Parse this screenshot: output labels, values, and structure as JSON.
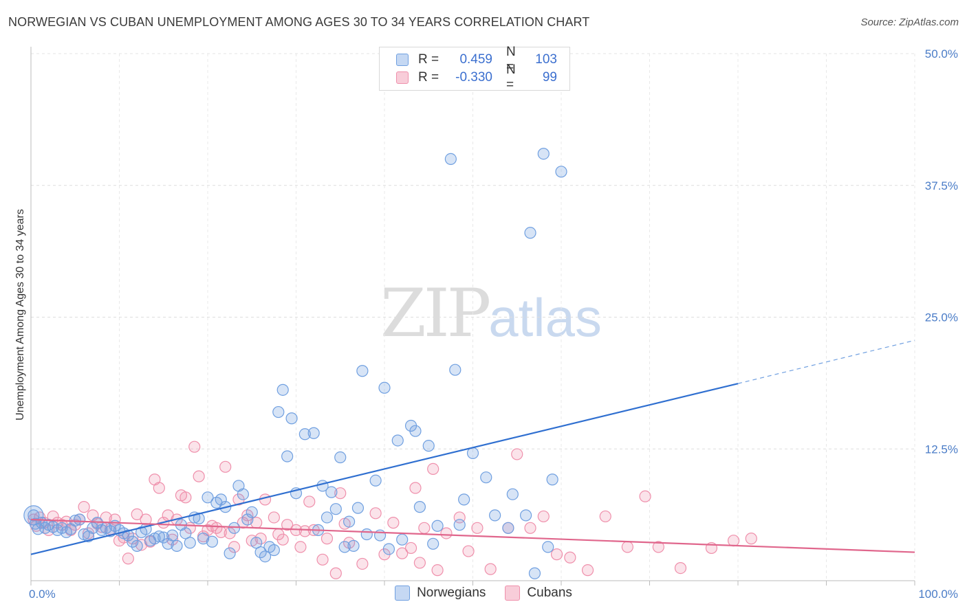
{
  "title": "NORWEGIAN VS CUBAN UNEMPLOYMENT AMONG AGES 30 TO 34 YEARS CORRELATION CHART",
  "source": "Source: ZipAtlas.com",
  "watermark": {
    "zip": "ZIP",
    "atlas": "atlas"
  },
  "legend": {
    "r_label": "R =",
    "n_label": "N =",
    "rows": [
      {
        "r": "0.459",
        "n": "103",
        "color": "#6f9fe0"
      },
      {
        "r": "-0.330",
        "n": "99",
        "color": "#ef8fab"
      }
    ]
  },
  "bottom_legend": [
    {
      "label": "Norwegians",
      "color": "#6f9fe0"
    },
    {
      "label": "Cubans",
      "color": "#ef8fab"
    }
  ],
  "chart_data": {
    "type": "scatter",
    "title": "NORWEGIAN VS CUBAN UNEMPLOYMENT AMONG AGES 30 TO 34 YEARS CORRELATION CHART",
    "xlabel": "",
    "ylabel": "Unemployment Among Ages 30 to 34 years",
    "xlim": [
      0,
      100
    ],
    "ylim": [
      0,
      50
    ],
    "x_tick_labels": [
      "0.0%",
      "100.0%"
    ],
    "y_ticks": [
      12.5,
      25.0,
      37.5,
      50.0
    ],
    "y_tick_labels": [
      "12.5%",
      "25.0%",
      "37.5%",
      "50.0%"
    ],
    "grid": true,
    "series": [
      {
        "name": "Norwegians",
        "color": "#6f9fe0",
        "trend": {
          "x0": 0,
          "y0": 2.5,
          "x1": 80,
          "y1": 18.7,
          "dash_to_x": 100,
          "dash_to_y": 22.8
        },
        "points": [
          [
            0.3,
            6.2
          ],
          [
            0.5,
            5.4
          ],
          [
            0.8,
            4.9
          ],
          [
            1.2,
            5.5
          ],
          [
            1.6,
            5.0
          ],
          [
            2.0,
            5.3
          ],
          [
            2.5,
            5.1
          ],
          [
            3.0,
            4.8
          ],
          [
            3.5,
            5.0
          ],
          [
            4.0,
            4.6
          ],
          [
            4.5,
            4.9
          ],
          [
            5.0,
            5.7
          ],
          [
            5.5,
            5.8
          ],
          [
            6.0,
            4.4
          ],
          [
            6.5,
            4.2
          ],
          [
            7.0,
            5.0
          ],
          [
            7.5,
            5.5
          ],
          [
            8.0,
            4.8
          ],
          [
            8.5,
            5.0
          ],
          [
            9.0,
            4.7
          ],
          [
            9.5,
            5.2
          ],
          [
            10.0,
            4.8
          ],
          [
            10.5,
            4.5
          ],
          [
            11.0,
            4.3
          ],
          [
            11.5,
            3.7
          ],
          [
            12.0,
            3.3
          ],
          [
            12.5,
            4.6
          ],
          [
            13.0,
            4.9
          ],
          [
            13.5,
            3.8
          ],
          [
            14.0,
            4.0
          ],
          [
            14.5,
            4.2
          ],
          [
            15.0,
            4.1
          ],
          [
            15.5,
            3.5
          ],
          [
            16.0,
            4.3
          ],
          [
            16.5,
            3.3
          ],
          [
            17.0,
            5.3
          ],
          [
            17.5,
            4.5
          ],
          [
            18.0,
            3.6
          ],
          [
            18.5,
            6.0
          ],
          [
            19.0,
            5.9
          ],
          [
            19.5,
            4.0
          ],
          [
            20.0,
            7.9
          ],
          [
            20.5,
            3.7
          ],
          [
            21.0,
            7.4
          ],
          [
            21.5,
            7.7
          ],
          [
            22.0,
            7.0
          ],
          [
            22.5,
            2.6
          ],
          [
            23.0,
            5.0
          ],
          [
            23.5,
            9.0
          ],
          [
            24.0,
            8.2
          ],
          [
            24.5,
            5.8
          ],
          [
            25.0,
            6.5
          ],
          [
            25.5,
            3.6
          ],
          [
            26.0,
            2.7
          ],
          [
            26.5,
            2.3
          ],
          [
            27.0,
            3.2
          ],
          [
            27.5,
            2.9
          ],
          [
            28.0,
            16.0
          ],
          [
            28.5,
            18.1
          ],
          [
            29.0,
            11.8
          ],
          [
            29.5,
            15.4
          ],
          [
            30.0,
            8.3
          ],
          [
            31.0,
            13.9
          ],
          [
            32.0,
            14.0
          ],
          [
            32.5,
            4.8
          ],
          [
            33.0,
            9.0
          ],
          [
            33.5,
            6.0
          ],
          [
            34.0,
            8.4
          ],
          [
            34.5,
            6.8
          ],
          [
            35.0,
            11.7
          ],
          [
            35.5,
            3.2
          ],
          [
            36.0,
            5.6
          ],
          [
            36.5,
            3.3
          ],
          [
            37.0,
            6.9
          ],
          [
            37.5,
            19.9
          ],
          [
            38.0,
            4.4
          ],
          [
            39.0,
            9.5
          ],
          [
            39.5,
            4.3
          ],
          [
            40.0,
            18.3
          ],
          [
            40.5,
            3.0
          ],
          [
            41.5,
            13.3
          ],
          [
            42.0,
            3.9
          ],
          [
            43.0,
            14.7
          ],
          [
            43.5,
            14.2
          ],
          [
            44.0,
            7.0
          ],
          [
            45.0,
            12.8
          ],
          [
            45.5,
            3.5
          ],
          [
            46.0,
            5.2
          ],
          [
            47.5,
            40.0
          ],
          [
            48.0,
            20.0
          ],
          [
            48.5,
            5.3
          ],
          [
            49.0,
            7.7
          ],
          [
            50.0,
            12.1
          ],
          [
            51.5,
            9.8
          ],
          [
            52.5,
            6.2
          ],
          [
            54.0,
            5.0
          ],
          [
            54.5,
            8.2
          ],
          [
            56.0,
            6.2
          ],
          [
            56.5,
            33.0
          ],
          [
            57.0,
            0.7
          ],
          [
            58.0,
            40.5
          ],
          [
            58.5,
            3.2
          ],
          [
            59.0,
            9.6
          ],
          [
            60.0,
            38.8
          ]
        ]
      },
      {
        "name": "Cubans",
        "color": "#ef8fab",
        "trend": {
          "x0": 0,
          "y0": 5.8,
          "x1": 100,
          "y1": 2.7
        },
        "points": [
          [
            0.3,
            5.8
          ],
          [
            0.6,
            5.2
          ],
          [
            1.0,
            6.0
          ],
          [
            1.5,
            5.5
          ],
          [
            2.0,
            4.8
          ],
          [
            2.5,
            6.1
          ],
          [
            3.0,
            5.5
          ],
          [
            3.5,
            5.3
          ],
          [
            4.0,
            5.6
          ],
          [
            4.5,
            4.8
          ],
          [
            5.0,
            5.3
          ],
          [
            5.5,
            5.8
          ],
          [
            6.0,
            7.0
          ],
          [
            6.5,
            4.5
          ],
          [
            7.0,
            6.2
          ],
          [
            7.5,
            5.4
          ],
          [
            8.0,
            5.1
          ],
          [
            8.5,
            6.0
          ],
          [
            9.0,
            4.9
          ],
          [
            9.5,
            5.8
          ],
          [
            10.0,
            3.8
          ],
          [
            10.5,
            4.1
          ],
          [
            11.0,
            2.1
          ],
          [
            11.5,
            4.0
          ],
          [
            12.0,
            6.3
          ],
          [
            12.5,
            3.4
          ],
          [
            13.0,
            5.8
          ],
          [
            13.5,
            3.7
          ],
          [
            14.0,
            9.6
          ],
          [
            14.5,
            8.8
          ],
          [
            15.0,
            5.5
          ],
          [
            15.5,
            6.2
          ],
          [
            16.0,
            3.9
          ],
          [
            16.5,
            5.8
          ],
          [
            17.0,
            8.1
          ],
          [
            17.5,
            7.9
          ],
          [
            18.0,
            5.0
          ],
          [
            18.5,
            12.7
          ],
          [
            19.0,
            9.9
          ],
          [
            19.5,
            4.2
          ],
          [
            20.0,
            4.8
          ],
          [
            20.5,
            5.2
          ],
          [
            21.0,
            5.0
          ],
          [
            21.5,
            4.6
          ],
          [
            22.0,
            10.8
          ],
          [
            22.5,
            4.5
          ],
          [
            23.0,
            3.2
          ],
          [
            23.5,
            7.7
          ],
          [
            24.0,
            5.5
          ],
          [
            24.5,
            6.2
          ],
          [
            25.0,
            3.8
          ],
          [
            25.5,
            5.5
          ],
          [
            26.0,
            4.0
          ],
          [
            26.5,
            7.7
          ],
          [
            27.5,
            6.0
          ],
          [
            28.0,
            4.4
          ],
          [
            28.5,
            3.9
          ],
          [
            29.0,
            5.3
          ],
          [
            30.0,
            4.8
          ],
          [
            30.5,
            3.2
          ],
          [
            31.0,
            4.7
          ],
          [
            31.5,
            7.5
          ],
          [
            32.0,
            4.8
          ],
          [
            33.0,
            2.0
          ],
          [
            33.5,
            4.0
          ],
          [
            34.5,
            0.7
          ],
          [
            35.0,
            8.3
          ],
          [
            35.5,
            5.4
          ],
          [
            36.0,
            3.6
          ],
          [
            37.5,
            1.6
          ],
          [
            39.0,
            6.4
          ],
          [
            40.0,
            2.5
          ],
          [
            41.0,
            5.5
          ],
          [
            42.0,
            2.6
          ],
          [
            43.0,
            3.1
          ],
          [
            43.5,
            8.8
          ],
          [
            44.0,
            1.7
          ],
          [
            44.5,
            5.0
          ],
          [
            45.5,
            10.6
          ],
          [
            46.0,
            1.0
          ],
          [
            47.0,
            4.5
          ],
          [
            48.5,
            6.0
          ],
          [
            49.5,
            2.8
          ],
          [
            50.5,
            5.0
          ],
          [
            52.0,
            1.1
          ],
          [
            54.0,
            5.0
          ],
          [
            55.0,
            12.0
          ],
          [
            56.5,
            5.0
          ],
          [
            58.0,
            6.1
          ],
          [
            59.5,
            2.5
          ],
          [
            61.0,
            2.2
          ],
          [
            63.0,
            1.0
          ],
          [
            65.0,
            6.1
          ],
          [
            67.5,
            3.2
          ],
          [
            69.5,
            8.0
          ],
          [
            71.0,
            3.2
          ],
          [
            73.5,
            1.2
          ],
          [
            77.0,
            3.1
          ],
          [
            79.5,
            3.8
          ],
          [
            81.5,
            4.0
          ]
        ]
      }
    ]
  }
}
